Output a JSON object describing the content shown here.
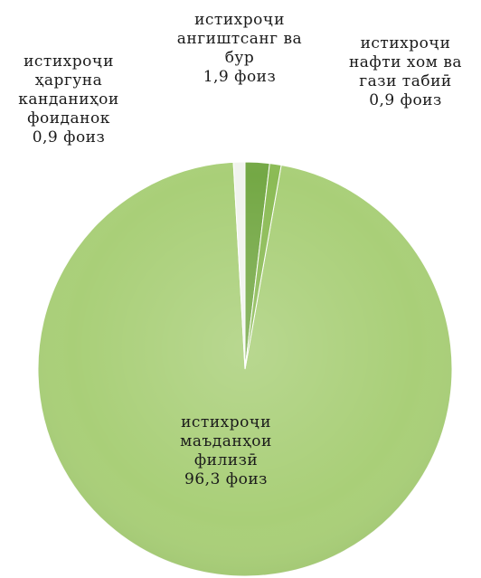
{
  "chart_data": {
    "type": "pie",
    "title": "",
    "slices": [
      {
        "label_lines": [
          "истихроҷи",
          "маъданҳои",
          "филизӣ"
        ],
        "value": 96.3,
        "value_text": "96,3 фоиз",
        "color": "#a9cf78"
      },
      {
        "label_lines": [
          "истихроҷи",
          "ҳаргуна",
          "канданиҳои",
          "фоиданок"
        ],
        "value": 0.9,
        "value_text": "0,9 фоиз",
        "color": "#f1f3ee"
      },
      {
        "label_lines": [
          "истихроҷи",
          "ангиштсанг ва",
          "бур"
        ],
        "value": 1.9,
        "value_text": "1,9 фоиз",
        "color": "#74a845"
      },
      {
        "label_lines": [
          "истихроҷи",
          "нафти хом ва",
          "гази табиӣ"
        ],
        "value": 0.9,
        "value_text": "0,9 фоиз",
        "color": "#8bbb55"
      }
    ]
  }
}
